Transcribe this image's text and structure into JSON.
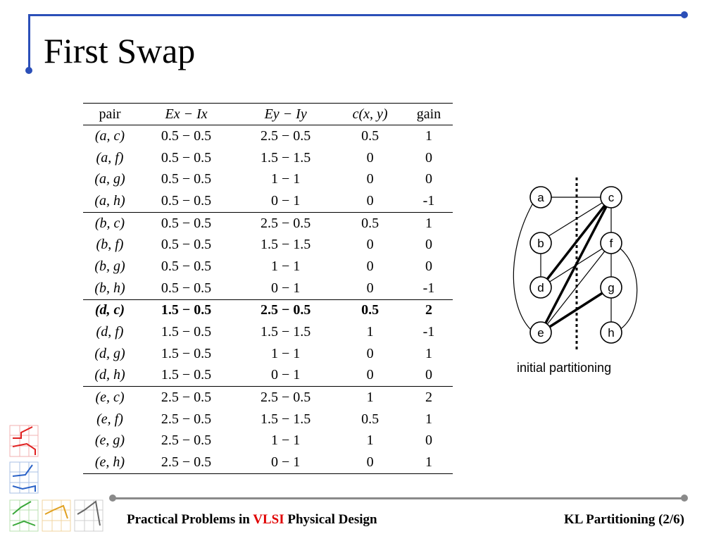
{
  "title": "First Swap",
  "table": {
    "headers": [
      "pair",
      "Ex − Ix",
      "Ey − Iy",
      "c(x, y)",
      "gain"
    ],
    "groups": [
      [
        {
          "pair": "(a, c)",
          "ex": "0.5 − 0.5",
          "ey": "2.5 − 0.5",
          "c": "0.5",
          "gain": "1"
        },
        {
          "pair": "(a, f)",
          "ex": "0.5 − 0.5",
          "ey": "1.5 − 1.5",
          "c": "0",
          "gain": "0"
        },
        {
          "pair": "(a, g)",
          "ex": "0.5 − 0.5",
          "ey": "1 − 1",
          "c": "0",
          "gain": "0"
        },
        {
          "pair": "(a, h)",
          "ex": "0.5 − 0.5",
          "ey": "0 − 1",
          "c": "0",
          "gain": "-1"
        }
      ],
      [
        {
          "pair": "(b, c)",
          "ex": "0.5 − 0.5",
          "ey": "2.5 − 0.5",
          "c": "0.5",
          "gain": "1"
        },
        {
          "pair": "(b, f)",
          "ex": "0.5 − 0.5",
          "ey": "1.5 − 1.5",
          "c": "0",
          "gain": "0"
        },
        {
          "pair": "(b, g)",
          "ex": "0.5 − 0.5",
          "ey": "1 − 1",
          "c": "0",
          "gain": "0"
        },
        {
          "pair": "(b, h)",
          "ex": "0.5 − 0.5",
          "ey": "0 − 1",
          "c": "0",
          "gain": "-1"
        }
      ],
      [
        {
          "pair": "(d, c)",
          "ex": "1.5 − 0.5",
          "ey": "2.5 − 0.5",
          "c": "0.5",
          "gain": "2",
          "bold": true
        },
        {
          "pair": "(d, f)",
          "ex": "1.5 − 0.5",
          "ey": "1.5 − 1.5",
          "c": "1",
          "gain": "-1"
        },
        {
          "pair": "(d, g)",
          "ex": "1.5 − 0.5",
          "ey": "1 − 1",
          "c": "0",
          "gain": "1"
        },
        {
          "pair": "(d, h)",
          "ex": "1.5 − 0.5",
          "ey": "0 − 1",
          "c": "0",
          "gain": "0"
        }
      ],
      [
        {
          "pair": "(e, c)",
          "ex": "2.5 − 0.5",
          "ey": "2.5 − 0.5",
          "c": "1",
          "gain": "2"
        },
        {
          "pair": "(e, f)",
          "ex": "2.5 − 0.5",
          "ey": "1.5 − 1.5",
          "c": "0.5",
          "gain": "1"
        },
        {
          "pair": "(e, g)",
          "ex": "2.5 − 0.5",
          "ey": "1 − 1",
          "c": "1",
          "gain": "0"
        },
        {
          "pair": "(e, h)",
          "ex": "2.5 − 0.5",
          "ey": "0 − 1",
          "c": "0",
          "gain": "1"
        }
      ]
    ]
  },
  "graph": {
    "caption": "initial partitioning",
    "nodes": [
      "a",
      "b",
      "c",
      "d",
      "e",
      "f",
      "g",
      "h"
    ]
  },
  "footer": {
    "left_pre": "Practical Problems in ",
    "left_accent": "VLSI",
    "left_post": " Physical Design",
    "right": "KL Partitioning (2/6)"
  },
  "colors": {
    "accent_blue": "#2b4fb8",
    "accent_red": "#e00000",
    "footer_gray": "#8a8a8a"
  }
}
